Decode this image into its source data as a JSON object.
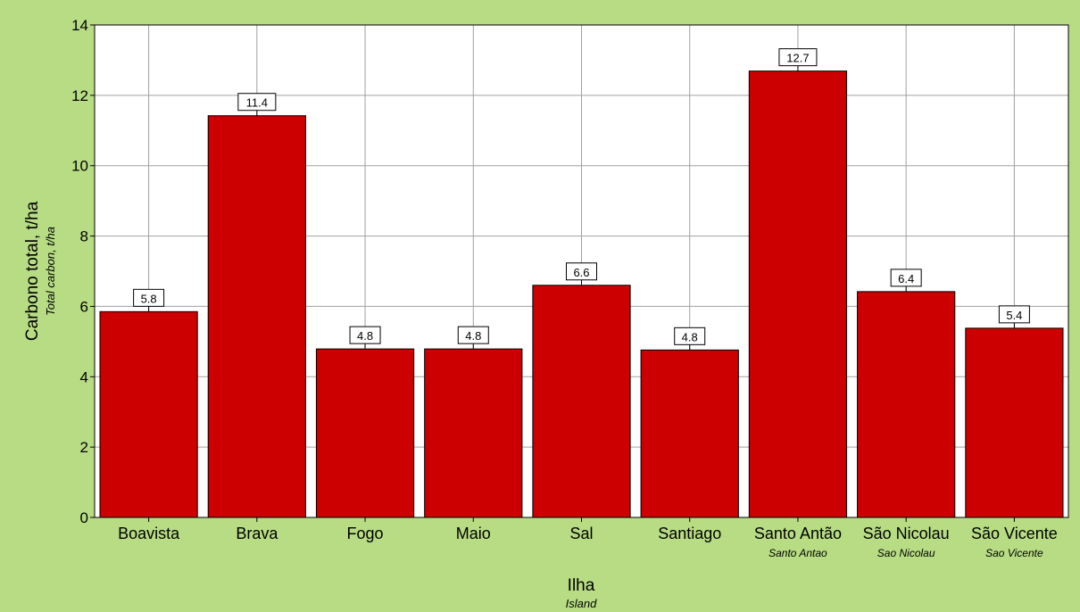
{
  "colors": {
    "background": "#B7DC84",
    "plot_area": "#FFFFFF",
    "bar_fill": "#CC0000",
    "bar_stroke": "#000000",
    "grid": "#A0A0A0",
    "axis": "#000000",
    "label_box_fill": "#FFFFFF"
  },
  "chart_data": {
    "type": "bar",
    "title": "",
    "xlabel": "Ilha",
    "xlabel_sub": "Island",
    "ylabel": "Carbono total, t/ha",
    "ylabel_sub": "Total carbon, t/ha",
    "categories": [
      "Boavista",
      "Brava",
      "Fogo",
      "Maio",
      "Sal",
      "Santiago",
      "Santo Antão",
      "São Nicolau",
      "São Vicente"
    ],
    "category_subs": [
      "",
      "",
      "",
      "",
      "",
      "",
      "Santo Antao",
      "Sao Nicolau",
      "Sao Vicente"
    ],
    "values": [
      5.85,
      11.42,
      4.79,
      4.79,
      6.6,
      4.76,
      12.69,
      6.42,
      5.38
    ],
    "value_labels": [
      "5.8",
      "11.4",
      "4.8",
      "4.8",
      "6.6",
      "4.8",
      "12.7",
      "6.4",
      "5.4"
    ],
    "ylim": [
      0,
      14
    ],
    "yticks": [
      0,
      2,
      4,
      6,
      8,
      10,
      12,
      14
    ],
    "grid": true,
    "legend": "none"
  }
}
